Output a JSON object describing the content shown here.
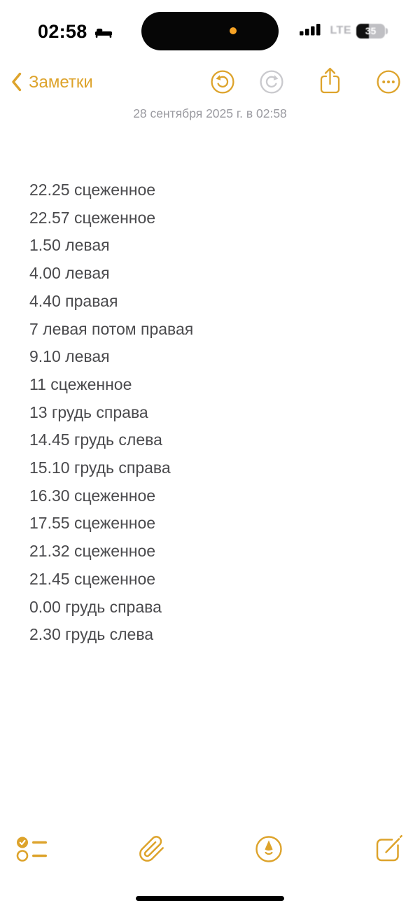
{
  "colors": {
    "accent": "#DDA32B",
    "note_text": "#4A4A4D",
    "date_text": "#9A9AA0",
    "mic_indicator": "#F7A325",
    "disabled_icon": "#C9C9CD"
  },
  "status_bar": {
    "time": "02:58",
    "focus_icon": "bed-icon",
    "signal_bars": 4,
    "network_label": "LTE",
    "battery_percent": "35"
  },
  "nav_bar": {
    "back_label": "Заметки",
    "action_icons": [
      "undo-icon",
      "redo-icon",
      "share-icon",
      "more-icon"
    ]
  },
  "note": {
    "date_line": "28 сентября 2025 г. в 02:58",
    "lines": [
      "22.25 сцеженное",
      "22.57 сцеженное",
      "1.50 левая",
      "4.00 левая",
      "4.40 правая",
      "7 левая потом правая",
      "9.10 левая",
      "11 сцеженное",
      "13 грудь справа",
      "14.45 грудь слева",
      "15.10 грудь справа",
      "16.30 сцеженное",
      "17.55 сцеженное",
      "21.32 сцеженное",
      "21.45 сцеженное",
      "0.00 грудь справа",
      "2.30 грудь слева"
    ]
  },
  "toolbar": {
    "icons": [
      "checklist-icon",
      "paperclip-icon",
      "markup-icon",
      "compose-icon"
    ]
  }
}
